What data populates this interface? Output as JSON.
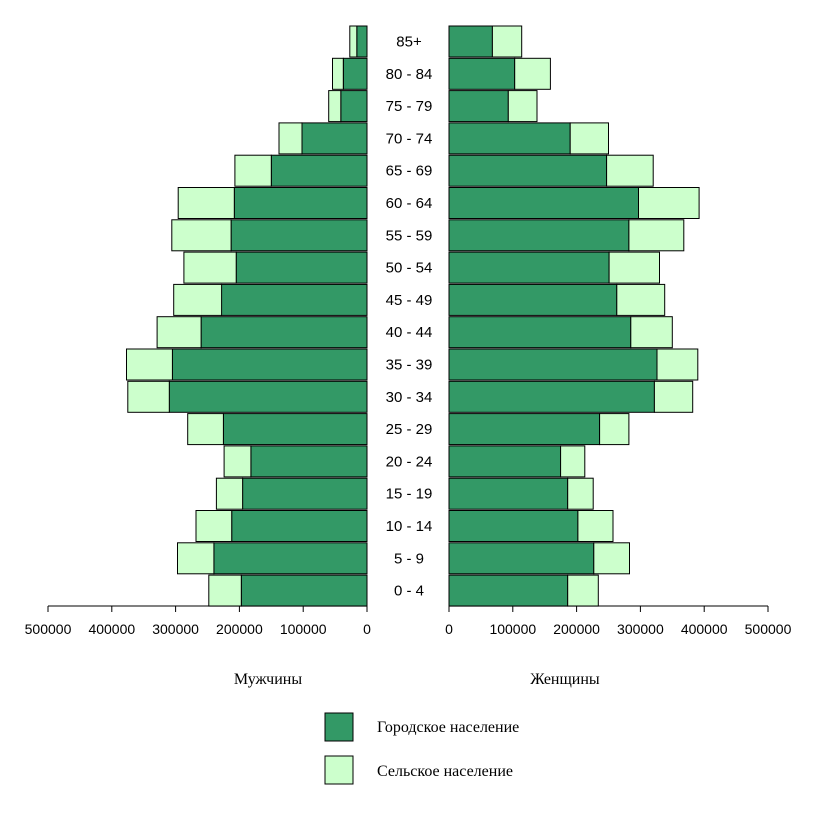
{
  "chart_data": {
    "type": "bar",
    "orientation": "horizontal",
    "categories": [
      "85+",
      "80 - 84",
      "75 - 79",
      "70 - 74",
      "65 - 69",
      "60 - 64",
      "55 - 59",
      "50 - 54",
      "45 - 49",
      "40 - 44",
      "35 - 39",
      "30 - 34",
      "25 - 29",
      "20 - 24",
      "15 - 19",
      "10 - 14",
      "5  -  9",
      "0  -  4"
    ],
    "panels": [
      {
        "label": "Мужчины",
        "side": "left",
        "series": [
          {
            "name": "Городское население",
            "values": [
              16000,
              37000,
              41000,
              102000,
              150000,
              208000,
              213000,
              205000,
              228000,
              260000,
              305000,
              310000,
              225000,
              182000,
              195000,
              212000,
              240000,
              197000
            ]
          },
          {
            "name": "Сельское население",
            "values": [
              11000,
              17000,
              19000,
              36000,
              57000,
              88000,
              93000,
              82000,
              75000,
              69000,
              72000,
              65000,
              56000,
              42000,
              41000,
              56000,
              57000,
              51000
            ]
          }
        ]
      },
      {
        "label": "Женщины",
        "side": "right",
        "series": [
          {
            "name": "Городское население",
            "values": [
              68000,
              103000,
              93000,
              190000,
              247000,
              297000,
              282000,
              251000,
              263000,
              285000,
              326000,
              322000,
              236000,
              175000,
              186000,
              202000,
              227000,
              186000
            ]
          },
          {
            "name": "Сельское население",
            "values": [
              46000,
              56000,
              45000,
              60000,
              73000,
              95000,
              86000,
              79000,
              75000,
              65000,
              64000,
              60000,
              46000,
              38000,
              40000,
              55000,
              56000,
              48000
            ]
          }
        ]
      }
    ],
    "xlim": [
      0,
      500000
    ],
    "xticks": {
      "left": [
        "500000",
        "400000",
        "300000",
        "200000",
        "100000",
        "0"
      ],
      "right": [
        "0",
        "100000",
        "200000",
        "300000",
        "400000",
        "500000"
      ]
    },
    "legend": {
      "placement": "bottom-center",
      "entries": [
        {
          "label": "Городское население",
          "color": "#339966"
        },
        {
          "label": "Сельское население",
          "color": "#ccffcc"
        }
      ]
    },
    "grid": false
  },
  "colors": {
    "urban": "#339966",
    "rural": "#ccffcc",
    "stroke": "#000000"
  }
}
